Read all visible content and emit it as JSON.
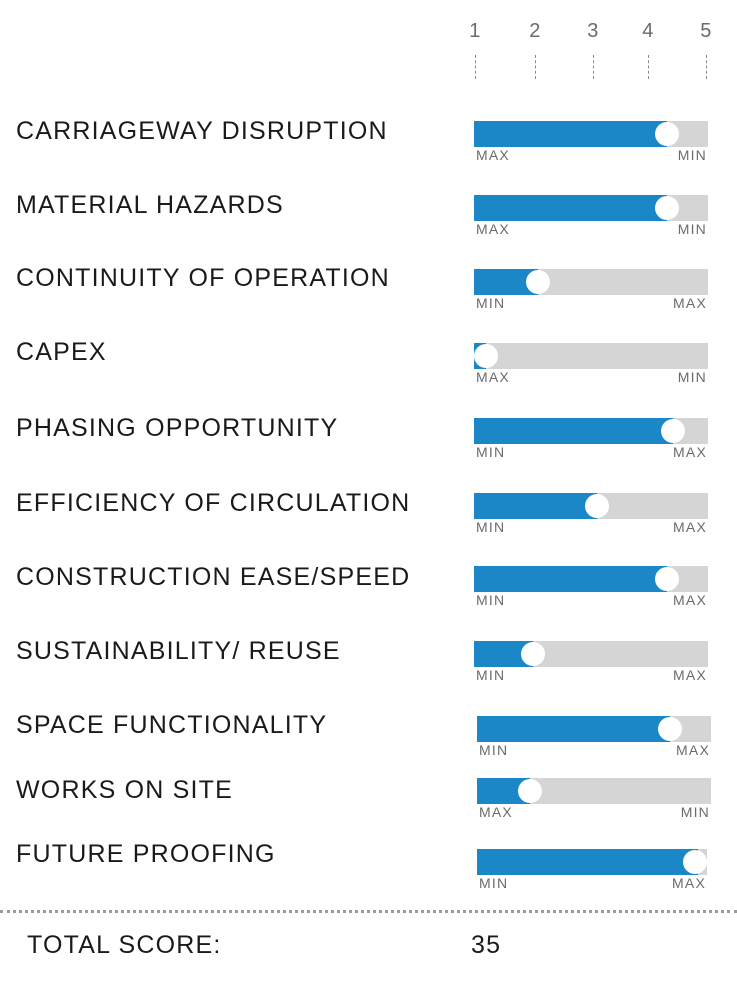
{
  "chart_data": {
    "type": "bar",
    "scale": {
      "ticks": [
        "1",
        "2",
        "3",
        "4",
        "5"
      ],
      "min": 1,
      "max": 5
    },
    "colors": {
      "fill": "#1b87c6",
      "track": "#d5d5d5",
      "knob": "#ffffff"
    },
    "criteria": [
      {
        "label": "CARRIAGEWAY DISRUPTION",
        "value": 4.3,
        "left": "MAX",
        "right": "MIN"
      },
      {
        "label": "MATERIAL HAZARDS",
        "value": 4.3,
        "left": "MAX",
        "right": "MIN"
      },
      {
        "label": "CONTINUITY OF OPERATION",
        "value": 2.1,
        "left": "MIN",
        "right": "MAX"
      },
      {
        "label": "CAPEX",
        "value": 1.2,
        "left": "MAX",
        "right": "MIN"
      },
      {
        "label": "PHASING OPPORTUNITY",
        "value": 4.4,
        "left": "MIN",
        "right": "MAX"
      },
      {
        "label": "EFFICIENCY OF CIRCULATION",
        "value": 3.1,
        "left": "MIN",
        "right": "MAX"
      },
      {
        "label": "CONSTRUCTION EASE/SPEED",
        "value": 4.3,
        "left": "MIN",
        "right": "MAX"
      },
      {
        "label": "SUSTAINABILITY/ REUSE",
        "value": 2.0,
        "left": "MIN",
        "right": "MAX"
      },
      {
        "label": "SPACE FUNCTIONALITY",
        "value": 4.3,
        "left": "MIN",
        "right": "MAX"
      },
      {
        "label": "WORKS ON SITE",
        "value": 1.9,
        "left": "MAX",
        "right": "MIN"
      },
      {
        "label": "FUTURE PROOFING",
        "value": 4.85,
        "left": "MIN",
        "right": "MAX"
      }
    ]
  },
  "total": {
    "label": "TOTAL SCORE:",
    "value": "35"
  }
}
